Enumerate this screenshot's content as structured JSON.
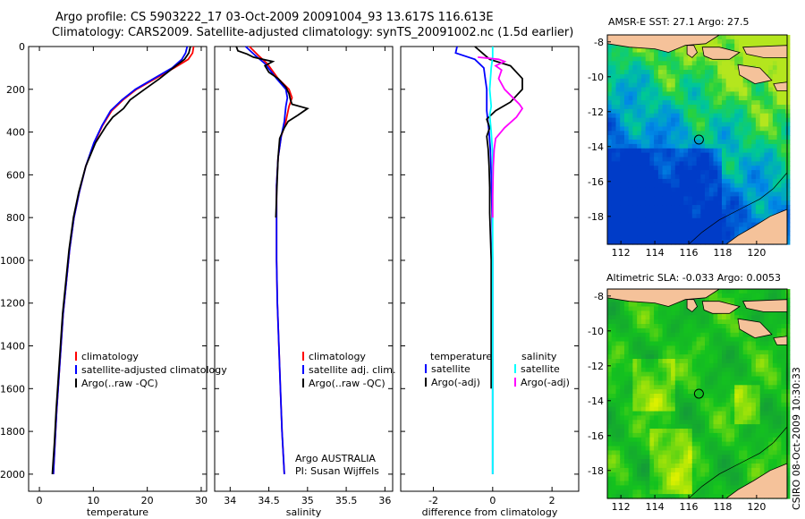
{
  "header": {
    "line1": "Argo profile: CS 5903222_17 03-Oct-2009 20091004_93 13.617S 116.613E",
    "line2": "Climatology: CARS2009. Satellite-adjusted climatology: synTS_20091002.nc (1.5d earlier)"
  },
  "credit": "CSIRO 08-Oct-2009 10:30:33",
  "chart_data": [
    {
      "type": "line",
      "name": "temperature-profile",
      "xlabel": "temperature",
      "ylabel": "",
      "xlim": [
        -2,
        31
      ],
      "ylim": [
        2080,
        0
      ],
      "xticks": [
        0,
        10,
        20,
        30
      ],
      "xtick_labels": [
        "0",
        "10",
        "20",
        "30"
      ],
      "yticks": [
        0,
        200,
        400,
        600,
        800,
        1000,
        1200,
        1400,
        1600,
        1800,
        2000
      ],
      "ytick_labels": [
        "0",
        "200",
        "400",
        "600",
        "800",
        "1000",
        "1200",
        "1400",
        "1600",
        "1800",
        "2000"
      ],
      "legend": [
        "climatology",
        "satellite-adjusted climatology",
        "Argo(..raw -QC)"
      ],
      "series": [
        {
          "name": "climatology",
          "color": "#ff0000",
          "points": [
            [
              28.6,
              0
            ],
            [
              28.4,
              30
            ],
            [
              27.6,
              60
            ],
            [
              25,
              100
            ],
            [
              21.5,
              150
            ],
            [
              18,
              200
            ],
            [
              15.5,
              250
            ],
            [
              13.4,
              300
            ],
            [
              11.7,
              370
            ],
            [
              10.2,
              450
            ],
            [
              8.6,
              560
            ],
            [
              7.4,
              680
            ],
            [
              6.4,
              800
            ],
            [
              5.6,
              950
            ],
            [
              5,
              1100
            ],
            [
              4.4,
              1250
            ],
            [
              4,
              1400
            ],
            [
              3.6,
              1550
            ],
            [
              3.2,
              1700
            ],
            [
              2.9,
              1850
            ],
            [
              2.6,
              2000
            ]
          ]
        },
        {
          "name": "satellite-adjusted climatology",
          "color": "#0000ff",
          "points": [
            [
              27.4,
              0
            ],
            [
              27.1,
              30
            ],
            [
              26.4,
              60
            ],
            [
              24.6,
              100
            ],
            [
              21.2,
              150
            ],
            [
              17.8,
              200
            ],
            [
              15.3,
              250
            ],
            [
              13.2,
              300
            ],
            [
              11.6,
              370
            ],
            [
              10.1,
              450
            ],
            [
              8.6,
              560
            ],
            [
              7.4,
              680
            ],
            [
              6.4,
              800
            ],
            [
              5.6,
              950
            ],
            [
              5,
              1100
            ],
            [
              4.4,
              1250
            ],
            [
              4,
              1400
            ],
            [
              3.6,
              1550
            ],
            [
              3.2,
              1700
            ],
            [
              2.9,
              1850
            ],
            [
              2.6,
              2000
            ]
          ]
        },
        {
          "name": "Argo(..raw -QC)",
          "color": "#000000",
          "points": [
            [
              28,
              0
            ],
            [
              27.7,
              30
            ],
            [
              26.9,
              60
            ],
            [
              24.8,
              100
            ],
            [
              22.3,
              150
            ],
            [
              19.5,
              200
            ],
            [
              16.8,
              250
            ],
            [
              15.6,
              290
            ],
            [
              13.6,
              330
            ],
            [
              12.4,
              370
            ],
            [
              10.4,
              450
            ],
            [
              8.6,
              560
            ],
            [
              7.3,
              680
            ],
            [
              6.3,
              800
            ],
            [
              5.5,
              950
            ],
            [
              4.9,
              1100
            ],
            [
              4.3,
              1250
            ],
            [
              3.9,
              1400
            ],
            [
              3.5,
              1550
            ],
            [
              3.1,
              1700
            ],
            [
              2.8,
              1850
            ],
            [
              2.4,
              2000
            ]
          ]
        }
      ]
    },
    {
      "type": "line",
      "name": "salinity-profile",
      "xlabel": "salinity",
      "xlim": [
        33.8,
        36.1
      ],
      "ylim": [
        2080,
        0
      ],
      "xticks": [
        34,
        34.5,
        35,
        35.5,
        36
      ],
      "xtick_labels": [
        "34",
        "34.5",
        "35",
        "35.5",
        "36"
      ],
      "legend": [
        "climatology",
        "satellite adj. clim.",
        "Argo(..raw -QC)"
      ],
      "annotation": [
        "Argo AUSTRALIA",
        "PI: Susan Wijffels"
      ],
      "series": [
        {
          "name": "climatology",
          "color": "#ff0000",
          "points": [
            [
              34.25,
              0
            ],
            [
              34.36,
              40
            ],
            [
              34.48,
              80
            ],
            [
              34.62,
              150
            ],
            [
              34.76,
              200
            ],
            [
              34.8,
              240
            ],
            [
              34.76,
              280
            ],
            [
              34.72,
              350
            ],
            [
              34.66,
              420
            ],
            [
              34.62,
              520
            ],
            [
              34.6,
              650
            ],
            [
              34.6,
              800
            ],
            [
              34.6,
              1000
            ],
            [
              34.61,
              1200
            ],
            [
              34.63,
              1400
            ],
            [
              34.65,
              1600
            ],
            [
              34.67,
              1800
            ],
            [
              34.7,
              2000
            ]
          ]
        },
        {
          "name": "satellite adj. clim.",
          "color": "#0000ff",
          "points": [
            [
              34.2,
              0
            ],
            [
              34.32,
              40
            ],
            [
              34.45,
              80
            ],
            [
              34.6,
              150
            ],
            [
              34.72,
              200
            ],
            [
              34.74,
              240
            ],
            [
              34.72,
              280
            ],
            [
              34.7,
              350
            ],
            [
              34.66,
              420
            ],
            [
              34.62,
              520
            ],
            [
              34.6,
              650
            ],
            [
              34.6,
              800
            ],
            [
              34.6,
              1000
            ],
            [
              34.61,
              1200
            ],
            [
              34.63,
              1400
            ],
            [
              34.65,
              1600
            ],
            [
              34.67,
              1800
            ],
            [
              34.7,
              2000
            ]
          ]
        },
        {
          "name": "Argo(..raw -QC)",
          "color": "#000000",
          "points": [
            [
              34.08,
              0
            ],
            [
              34.1,
              20
            ],
            [
              34.22,
              35
            ],
            [
              34.3,
              50
            ],
            [
              34.42,
              60
            ],
            [
              34.55,
              70
            ],
            [
              34.45,
              90
            ],
            [
              34.5,
              120
            ],
            [
              34.62,
              150
            ],
            [
              34.72,
              190
            ],
            [
              34.76,
              220
            ],
            [
              34.78,
              250
            ],
            [
              34.8,
              270
            ],
            [
              35.0,
              290
            ],
            [
              34.88,
              320
            ],
            [
              34.75,
              350
            ],
            [
              34.7,
              380
            ],
            [
              34.64,
              430
            ],
            [
              34.62,
              520
            ],
            [
              34.6,
              700
            ],
            [
              34.59,
              800
            ]
          ]
        }
      ]
    },
    {
      "type": "line",
      "name": "difference-profile",
      "xlabel": "difference from climatology",
      "xlim": [
        -3.1,
        2.9
      ],
      "ylim": [
        2080,
        0
      ],
      "xticks": [
        -2,
        0,
        2
      ],
      "xtick_labels": [
        "-2",
        "0",
        "2"
      ],
      "legend_headers": [
        "temperature",
        "salinity"
      ],
      "legend": [
        "satellite",
        "Argo(-adj)",
        "satellite",
        "Argo(-adj)"
      ],
      "series": [
        {
          "name": "temperature satellite",
          "color": "#0000ff",
          "points": [
            [
              -1.2,
              0
            ],
            [
              -1.25,
              30
            ],
            [
              -0.6,
              60
            ],
            [
              -0.3,
              100
            ],
            [
              -0.25,
              150
            ],
            [
              -0.2,
              200
            ],
            [
              -0.2,
              300
            ],
            [
              -0.12,
              400
            ],
            [
              -0.08,
              480
            ],
            [
              -0.05,
              600
            ],
            [
              -0.02,
              800
            ],
            [
              0,
              1000
            ],
            [
              0,
              2000
            ]
          ]
        },
        {
          "name": "temperature Argo(-adj)",
          "color": "#000000",
          "points": [
            [
              -0.6,
              0
            ],
            [
              -0.35,
              30
            ],
            [
              -0.1,
              60
            ],
            [
              0.6,
              90
            ],
            [
              1.0,
              150
            ],
            [
              1.0,
              200
            ],
            [
              0.6,
              260
            ],
            [
              0.1,
              300
            ],
            [
              -0.2,
              340
            ],
            [
              -0.1,
              380
            ],
            [
              -0.2,
              420
            ],
            [
              -0.15,
              480
            ],
            [
              -0.12,
              560
            ],
            [
              -0.1,
              660
            ],
            [
              -0.1,
              780
            ],
            [
              -0.05,
              1000
            ],
            [
              -0.05,
              1400
            ],
            [
              -0.05,
              1600
            ]
          ]
        },
        {
          "name": "salinity satellite",
          "color": "#00ffff",
          "points": [
            [
              0,
              0
            ],
            [
              0,
              50
            ],
            [
              -0.05,
              100
            ],
            [
              -0.1,
              200
            ],
            [
              -0.05,
              280
            ],
            [
              -0.1,
              320
            ],
            [
              -0.05,
              400
            ],
            [
              0,
              500
            ],
            [
              0,
              2000
            ]
          ]
        },
        {
          "name": "salinity Argo(-adj)",
          "color": "#ff00ff",
          "points": [
            [
              -0.5,
              50
            ],
            [
              0.2,
              60
            ],
            [
              0.4,
              70
            ],
            [
              0.1,
              90
            ],
            [
              0.3,
              110
            ],
            [
              0.2,
              150
            ],
            [
              0.4,
              200
            ],
            [
              0.9,
              270
            ],
            [
              1.0,
              290
            ],
            [
              0.8,
              330
            ],
            [
              0.4,
              380
            ],
            [
              0.1,
              430
            ],
            [
              0.05,
              480
            ],
            [
              0.02,
              560
            ],
            [
              0,
              700
            ],
            [
              0,
              800
            ]
          ]
        }
      ]
    },
    {
      "type": "heatmap",
      "name": "sst-map",
      "title": "AMSR-E SST: 27.1 Argo: 27.5",
      "xlim": [
        111.2,
        121.8
      ],
      "ylim": [
        -19.6,
        -7.6
      ],
      "xticks": [
        112,
        114,
        116,
        118,
        120
      ],
      "xtick_labels": [
        "112",
        "114",
        "116",
        "118",
        "120"
      ],
      "yticks": [
        -8,
        -10,
        -12,
        -14,
        -16,
        -18
      ],
      "ytick_labels": [
        "-8",
        "-10",
        "-12",
        "-14",
        "-16",
        "-18"
      ],
      "marker": [
        116.6,
        -13.6
      ]
    },
    {
      "type": "heatmap",
      "name": "sla-map",
      "title": "Altimetric SLA: -0.033 Argo: 0.0053",
      "xlim": [
        111.2,
        121.8
      ],
      "ylim": [
        -19.6,
        -7.6
      ],
      "xticks": [
        112,
        114,
        116,
        118,
        120
      ],
      "xtick_labels": [
        "112",
        "114",
        "116",
        "118",
        "120"
      ],
      "yticks": [
        -8,
        -10,
        -12,
        -14,
        -16,
        -18
      ],
      "ytick_labels": [
        "-8",
        "-10",
        "-12",
        "-14",
        "-16",
        "-18"
      ],
      "marker": [
        116.6,
        -13.6
      ]
    }
  ]
}
